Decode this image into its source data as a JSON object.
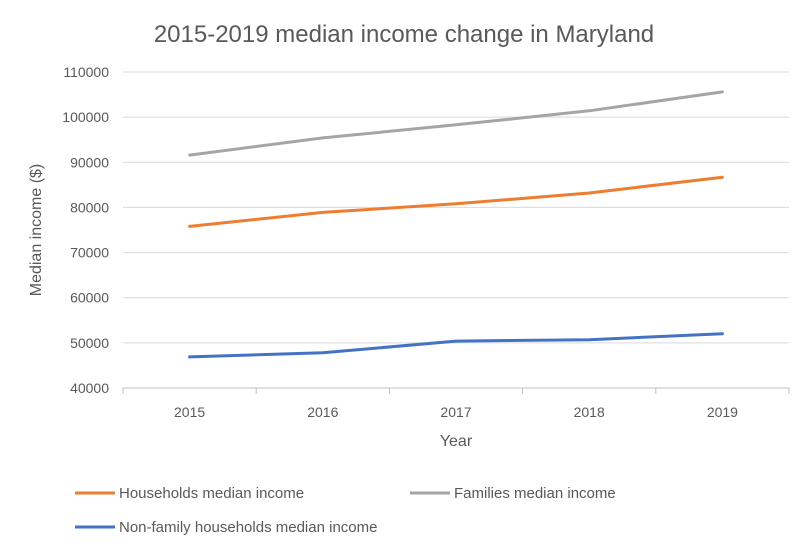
{
  "chart_data": {
    "type": "line",
    "title": "2015-2019 median income change in Maryland",
    "xlabel": "Year",
    "ylabel": "Median income ($)",
    "categories": [
      "2015",
      "2016",
      "2017",
      "2018",
      "2019"
    ],
    "ylim": [
      40000,
      110000
    ],
    "yticks": [
      "40000",
      "50000",
      "60000",
      "70000",
      "80000",
      "90000",
      "100000",
      "110000"
    ],
    "grid": true,
    "legend_position": "bottom",
    "series": [
      {
        "name": "Households median income",
        "color": "#ED7D31",
        "values": [
          75800,
          78900,
          80800,
          83200,
          86700
        ]
      },
      {
        "name": "Families median income",
        "color": "#A5A5A5",
        "values": [
          91600,
          95400,
          98300,
          101400,
          105600
        ]
      },
      {
        "name": "Non-family households median income",
        "color": "#4472C4",
        "values": [
          46900,
          47800,
          50400,
          50700,
          52000
        ]
      }
    ]
  }
}
